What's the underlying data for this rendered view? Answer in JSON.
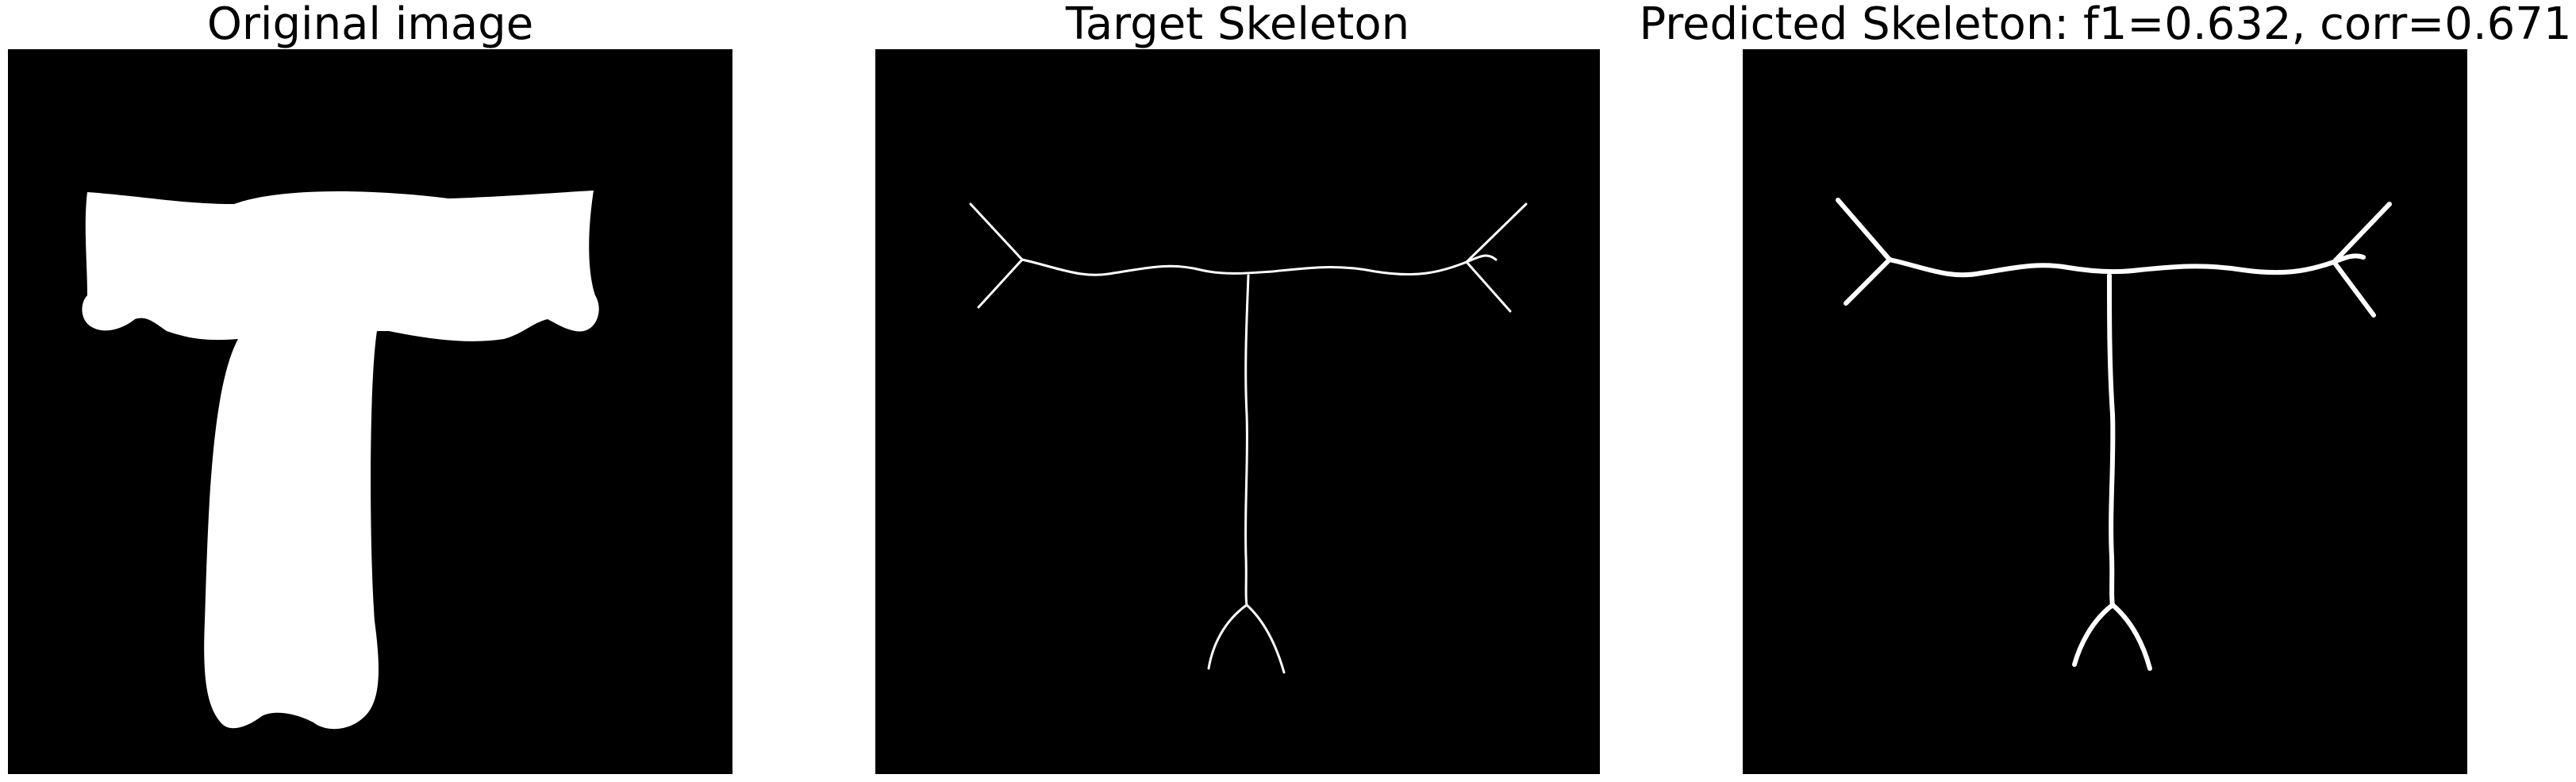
{
  "panels": [
    {
      "title": "Original image"
    },
    {
      "title": "Target Skeleton"
    },
    {
      "title": "Predicted Skeleton: f1=0.632, corr=0.671"
    }
  ],
  "colors": {
    "background": "#000000",
    "foreground": "#ffffff",
    "page": "#ffffff"
  }
}
